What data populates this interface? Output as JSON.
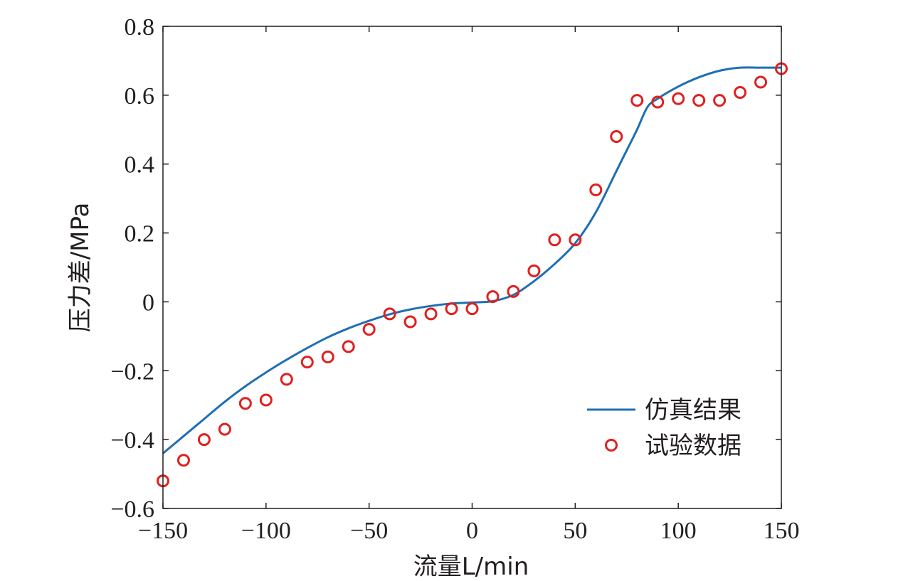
{
  "chart_data": {
    "type": "line",
    "title": "",
    "xlabel": "流量L/min",
    "ylabel": "压力差/MPa",
    "xlim": [
      -150,
      150
    ],
    "ylim": [
      -0.6,
      0.8
    ],
    "xticks": [
      -150,
      -100,
      -50,
      0,
      50,
      100,
      150
    ],
    "xtick_labels": [
      "−150",
      "−100",
      "−50",
      "0",
      "50",
      "100",
      "150"
    ],
    "yticks": [
      -0.6,
      -0.4,
      -0.2,
      0,
      0.2,
      0.4,
      0.6,
      0.8
    ],
    "ytick_labels": [
      "−0.6",
      "−0.4",
      "−0.2",
      "0",
      "0.2",
      "0.4",
      "0.6",
      "0.8"
    ],
    "grid": false,
    "legend_position": "bottom-right",
    "series": [
      {
        "name": "仿真结果",
        "type": "line",
        "color": "#1f6fb2",
        "x": [
          -150,
          -140,
          -130,
          -120,
          -110,
          -100,
          -90,
          -80,
          -70,
          -60,
          -50,
          -40,
          -30,
          -20,
          -10,
          0,
          10,
          20,
          30,
          40,
          50,
          60,
          70,
          75,
          80,
          85,
          90,
          100,
          110,
          120,
          130,
          140,
          150
        ],
        "y": [
          -0.44,
          -0.39,
          -0.34,
          -0.29,
          -0.245,
          -0.205,
          -0.168,
          -0.134,
          -0.103,
          -0.077,
          -0.055,
          -0.036,
          -0.022,
          -0.012,
          -0.005,
          -0.002,
          0.002,
          0.02,
          0.06,
          0.11,
          0.17,
          0.26,
          0.38,
          0.44,
          0.5,
          0.565,
          0.59,
          0.625,
          0.652,
          0.671,
          0.68,
          0.68,
          0.68
        ]
      },
      {
        "name": "试验数据",
        "type": "scatter",
        "color": "#e02020",
        "x": [
          -150,
          -140,
          -130,
          -120,
          -110,
          -100,
          -90,
          -80,
          -70,
          -60,
          -50,
          -40,
          -30,
          -20,
          -10,
          0,
          10,
          20,
          30,
          40,
          50,
          60,
          70,
          80,
          90,
          100,
          110,
          120,
          130,
          140,
          150
        ],
        "y": [
          -0.52,
          -0.46,
          -0.4,
          -0.37,
          -0.295,
          -0.285,
          -0.225,
          -0.175,
          -0.16,
          -0.13,
          -0.08,
          -0.035,
          -0.058,
          -0.035,
          -0.02,
          -0.02,
          0.015,
          0.03,
          0.09,
          0.18,
          0.18,
          0.325,
          0.48,
          0.585,
          0.58,
          0.59,
          0.585,
          0.585,
          0.608,
          0.638,
          0.677
        ]
      }
    ]
  }
}
